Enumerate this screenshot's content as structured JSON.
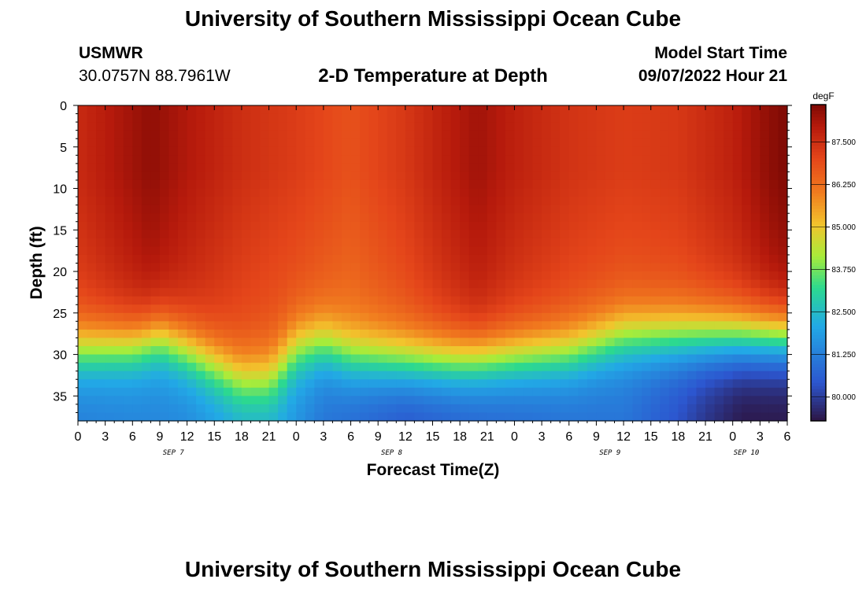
{
  "header": {
    "title": "University of Southern Mississippi Ocean Cube",
    "station": "USMWR",
    "coords": "30.0757N  88.7961W",
    "subtitle": "2-D Temperature at Depth",
    "model_label": "Model Start Time",
    "model_time": "09/07/2022 Hour 21"
  },
  "footer": {
    "title": "University of Southern Mississippi Ocean Cube"
  },
  "chart_data": {
    "type": "heatmap",
    "title": "2-D Temperature at Depth",
    "xlabel": "Forecast Time(Z)",
    "ylabel": "Depth (ft)",
    "colorbar_label": "degF",
    "x_ticks": [
      "0",
      "3",
      "6",
      "9",
      "12",
      "15",
      "18",
      "21",
      "0",
      "3",
      "6",
      "9",
      "12",
      "15",
      "18",
      "21",
      "0",
      "3",
      "6",
      "9",
      "12",
      "15",
      "18",
      "21",
      "0",
      "3",
      "6"
    ],
    "day_labels": [
      {
        "label": "SEP 7",
        "tick": 3.5
      },
      {
        "label": "SEP 8",
        "tick": 11.5
      },
      {
        "label": "SEP 9",
        "tick": 19.5
      },
      {
        "label": "SEP 10",
        "tick": 24.5
      }
    ],
    "y_ticks": [
      "0",
      "5",
      "10",
      "15",
      "20",
      "25",
      "30",
      "35"
    ],
    "ylim": [
      0,
      38
    ],
    "hours_range": [
      0,
      78
    ],
    "colorbar_ticks": [
      "87.500",
      "86.250",
      "85.000",
      "83.750",
      "82.500",
      "81.250",
      "80.000"
    ],
    "colorbar_values": [
      87.5,
      86.25,
      85.0,
      83.75,
      82.5,
      81.25,
      80.0
    ],
    "colorbar_range": [
      79.3,
      88.6
    ],
    "colors": {
      "dark": "#2c1544",
      "blue": "#2c56cf",
      "cyan": "#22a9e6",
      "green": "#2cd98f",
      "lime": "#a8ec3a",
      "yellow": "#f2c42d",
      "orange": "#f17d1f",
      "redorange": "#e4451a",
      "red": "#b61a0c",
      "darkred": "#7e0a04"
    },
    "thermocline_depth_ft": [
      [
        0,
        29.5
      ],
      [
        6,
        29
      ],
      [
        9,
        28
      ],
      [
        12,
        29.5
      ],
      [
        18,
        33
      ],
      [
        21,
        33
      ],
      [
        24,
        29.5
      ],
      [
        27,
        29
      ],
      [
        30,
        30.5
      ],
      [
        36,
        31
      ],
      [
        42,
        31
      ],
      [
        48,
        30.5
      ],
      [
        54,
        30
      ],
      [
        60,
        28
      ],
      [
        66,
        28
      ],
      [
        72,
        28
      ],
      [
        78,
        28
      ]
    ],
    "surface_temp_degF": [
      [
        0,
        87.6
      ],
      [
        4,
        88.0
      ],
      [
        8,
        88.4
      ],
      [
        12,
        88.0
      ],
      [
        18,
        87.5
      ],
      [
        24,
        87.2
      ],
      [
        30,
        86.8
      ],
      [
        36,
        87.3
      ],
      [
        40,
        87.8
      ],
      [
        44,
        88.2
      ],
      [
        48,
        87.8
      ],
      [
        54,
        87.4
      ],
      [
        60,
        87.2
      ],
      [
        66,
        87.3
      ],
      [
        72,
        87.8
      ],
      [
        76,
        88.4
      ],
      [
        78,
        88.6
      ]
    ],
    "bottom_temp_degF": [
      [
        0,
        81.2
      ],
      [
        12,
        81.4
      ],
      [
        18,
        82.0
      ],
      [
        22,
        82.0
      ],
      [
        27,
        81.0
      ],
      [
        36,
        80.3
      ],
      [
        44,
        80.6
      ],
      [
        54,
        80.9
      ],
      [
        60,
        81.0
      ],
      [
        66,
        80.3
      ],
      [
        69,
        79.8
      ],
      [
        73,
        79.3
      ],
      [
        78,
        79.3
      ]
    ]
  }
}
